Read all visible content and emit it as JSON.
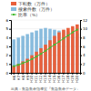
{
  "chart_data": {
    "type": "bar",
    "categories": [
      "H6",
      "H7",
      "H8",
      "H9",
      "H10",
      "H11",
      "H12",
      "H13",
      "H14",
      "H15",
      "H16",
      "H17",
      "H18",
      "H19",
      "H20"
    ],
    "series": [
      {
        "name": "下転数（万件）",
        "color": "#e8603c",
        "type": "bar",
        "values": [
          0.8,
          1.0,
          1.3,
          1.6,
          2.0,
          2.4,
          2.8,
          3.2,
          3.7,
          4.2,
          4.6,
          4.9,
          5.1,
          5.3,
          5.5
        ]
      },
      {
        "name": "搜索件数（万件）",
        "color": "#88bbdd",
        "type": "bar",
        "values": [
          3.8,
          4.0,
          4.2,
          4.4,
          4.6,
          4.8,
          5.0,
          5.1,
          5.0,
          4.9,
          4.8,
          4.8,
          4.7,
          4.6,
          4.5
        ]
      },
      {
        "name": "比率（%）",
        "color": "#44bb33",
        "type": "line",
        "axis": "y2",
        "marker": "square",
        "values": [
          1.5,
          1.8,
          2.2,
          2.6,
          3.1,
          3.7,
          4.3,
          5.0,
          5.7,
          6.4,
          7.1,
          7.8,
          8.5,
          9.2,
          9.8
        ]
      }
    ],
    "ylim": [
      0,
      6
    ],
    "yticks": [
      0,
      1,
      2,
      3,
      4,
      5,
      6
    ],
    "y2lim": [
      0,
      12
    ],
    "y2ticks": [
      0,
      2,
      4,
      6,
      8,
      10,
      12
    ],
    "grid": true,
    "legend": "upper left",
    "annotations": [
      "出典：救急救命指導室『救急救命データ』"
    ]
  }
}
